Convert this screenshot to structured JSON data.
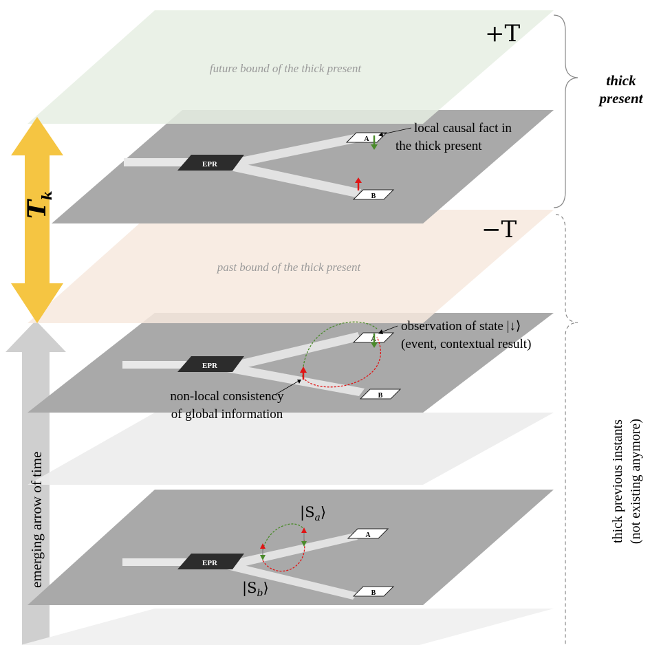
{
  "planes": {
    "future_plus_label": "+T",
    "future_bound_label": "future bound of the thick present",
    "past_minus_label": "−T",
    "past_bound_label": "past bound of the thick present"
  },
  "thick_present": {
    "line1": "thick",
    "line2": "present"
  },
  "thick_previous": {
    "line1": "thick previous instants",
    "line2": "(not existing anymore)"
  },
  "tk_label": {
    "base": "T",
    "sub": "k"
  },
  "time_arrow_label": "emerging arrow of time",
  "epr_label": "EPR",
  "station_a": "A",
  "station_b": "B",
  "annotations": {
    "local_fact_line1": "local causal fact in",
    "local_fact_line2": "the thick present",
    "observation_line1": "observation of state |↓⟩",
    "observation_line2": "(event, contextual result)",
    "nonlocal_line1": "non-local consistency",
    "nonlocal_line2": "of global information",
    "sa": "|S",
    "sa_sub": "a",
    "sb": "|S",
    "sb_sub": "b",
    "ket_close": "⟩"
  },
  "colors": {
    "future_plane": "#e6efe3",
    "past_plane": "#f7e9de",
    "slice_plane": "#a9a9a9",
    "faint_plane": "#ececec",
    "tk_arrow": "#f5c542",
    "time_arrow": "#cfcfcf",
    "spin_down": "#4a8a2a",
    "spin_up": "#e01515"
  }
}
